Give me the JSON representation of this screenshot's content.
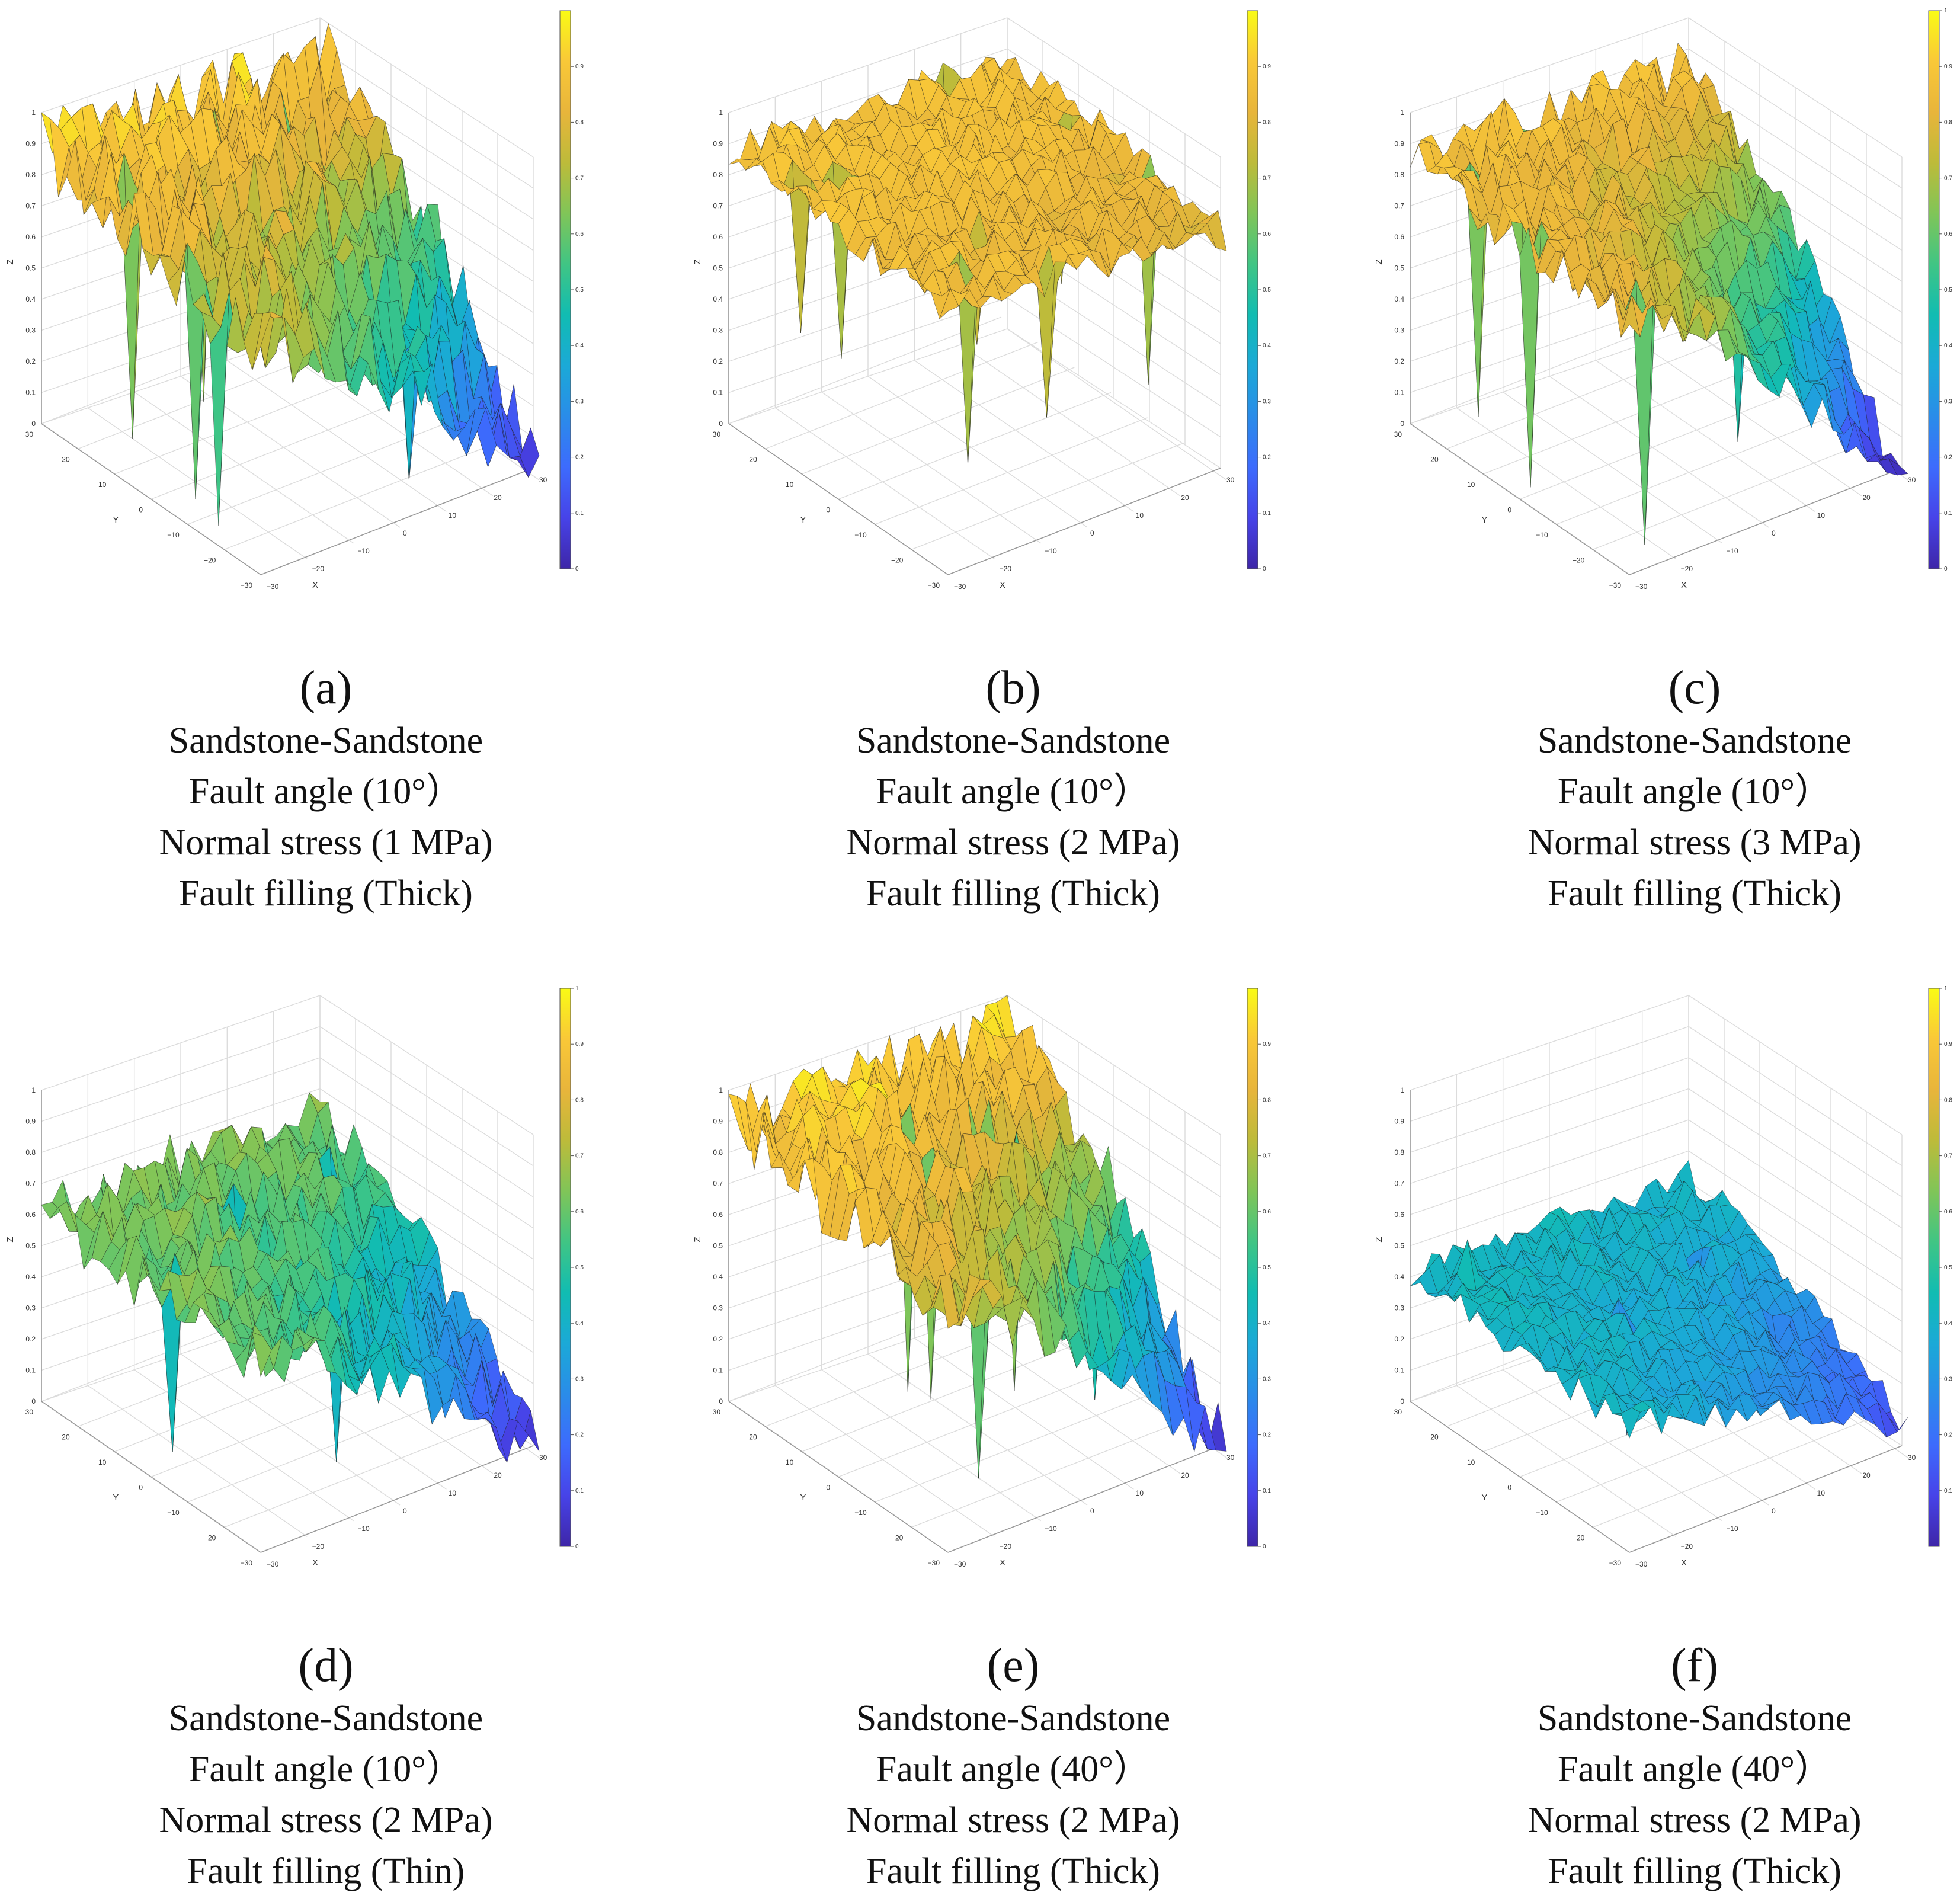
{
  "colors": {
    "colormap": [
      "#3e26a8",
      "#4743e8",
      "#3d6bfd",
      "#2a8ce9",
      "#1ba9d7",
      "#11bcb2",
      "#40c584",
      "#80c558",
      "#bdbb3a",
      "#e8b53b",
      "#f9c838",
      "#f9fb15"
    ],
    "surface_edge": "#1a1a1a",
    "grid": "#dcdcdc",
    "axis": "#9a9a9a"
  },
  "chart_data": [
    {
      "type": "surface3d",
      "panel_letter": "(a)",
      "caption": [
        "Sandstone-Sandstone",
        "Fault angle (10°）",
        "Normal stress (1 MPa)",
        "Fault filling (Thick)"
      ],
      "xlabel": "X",
      "ylabel": "Y",
      "zlabel": "Z",
      "xlim": [
        -30,
        30
      ],
      "ylim": [
        -30,
        30
      ],
      "zlim": [
        0,
        1
      ],
      "x_ticks": [
        "−30",
        "−20",
        "−10",
        "0",
        "10",
        "20",
        "30"
      ],
      "y_ticks": [
        "−30",
        "−20",
        "−10",
        "0",
        "10",
        "20",
        "30"
      ],
      "z_ticks": [
        "0",
        "0.1",
        "0.2",
        "0.3",
        "0.4",
        "0.5",
        "0.6",
        "0.7",
        "0.8",
        "0.9",
        "1"
      ],
      "colorbar": {
        "range": [
          0,
          1
        ],
        "ticks": [
          "0",
          "0.1",
          "0.2",
          "0.3",
          "0.4",
          "0.5",
          "0.6",
          "0.7",
          "0.8",
          "0.9"
        ]
      },
      "surface_profile": {
        "base_level": 0.72,
        "high_edge_level": 0.9,
        "low_corner_level": 0.1,
        "ripple": 0.14,
        "spike_count": 3,
        "dip_count": 6
      }
    },
    {
      "type": "surface3d",
      "panel_letter": "(b)",
      "caption": [
        "Sandstone-Sandstone",
        "Fault angle (10°）",
        "Normal stress (2 MPa)",
        "Fault filling (Thick)"
      ],
      "xlabel": "X",
      "ylabel": "Y",
      "zlabel": "Z",
      "xlim": [
        -30,
        30
      ],
      "ylim": [
        -30,
        30
      ],
      "zlim": [
        0,
        1
      ],
      "x_ticks": [
        "−30",
        "−20",
        "−10",
        "0",
        "10",
        "20",
        "30"
      ],
      "y_ticks": [
        "−30",
        "−20",
        "−10",
        "0",
        "10",
        "20",
        "30"
      ],
      "z_ticks": [
        "0",
        "0.1",
        "0.2",
        "0.3",
        "0.4",
        "0.5",
        "0.6",
        "0.7",
        "0.8",
        "0.9",
        "1"
      ],
      "colorbar": {
        "range": [
          0,
          1
        ],
        "ticks": [
          "0",
          "0.1",
          "0.2",
          "0.3",
          "0.4",
          "0.5",
          "0.6",
          "0.7",
          "0.8",
          "0.9"
        ]
      },
      "surface_profile": {
        "base_level": 0.85,
        "high_edge_level": 0.88,
        "low_corner_level": 0.8,
        "ripple": 0.06,
        "spike_count": 0,
        "dip_count": 9
      }
    },
    {
      "type": "surface3d",
      "panel_letter": "(c)",
      "caption": [
        "Sandstone-Sandstone",
        "Fault angle (10°）",
        "Normal stress (3 MPa)",
        "Fault filling (Thick)"
      ],
      "xlabel": "X",
      "ylabel": "Y",
      "zlabel": "Z",
      "xlim": [
        -30,
        30
      ],
      "ylim": [
        -30,
        30
      ],
      "zlim": [
        0,
        1
      ],
      "x_ticks": [
        "−30",
        "−20",
        "−10",
        "0",
        "10",
        "20",
        "30"
      ],
      "y_ticks": [
        "−30",
        "−20",
        "−10",
        "0",
        "10",
        "20",
        "30"
      ],
      "z_ticks": [
        "0",
        "0.1",
        "0.2",
        "0.3",
        "0.4",
        "0.5",
        "0.6",
        "0.7",
        "0.8",
        "0.9",
        "1"
      ],
      "colorbar": {
        "range": [
          0,
          1
        ],
        "ticks": [
          "0",
          "0.1",
          "0.2",
          "0.3",
          "0.4",
          "0.5",
          "0.6",
          "0.7",
          "0.8",
          "0.9",
          "1"
        ]
      },
      "surface_profile": {
        "base_level": 0.82,
        "high_edge_level": 0.85,
        "low_corner_level": 0.05,
        "ripple": 0.08,
        "spike_count": 2,
        "dip_count": 5
      }
    },
    {
      "type": "surface3d",
      "panel_letter": "(d)",
      "caption": [
        "Sandstone-Sandstone",
        "Fault angle (10°）",
        "Normal stress (2 MPa)",
        "Fault filling (Thin)"
      ],
      "xlabel": "X",
      "ylabel": "Y",
      "zlabel": "Z",
      "xlim": [
        -30,
        30
      ],
      "ylim": [
        -30,
        30
      ],
      "zlim": [
        0,
        1
      ],
      "x_ticks": [
        "−30",
        "−20",
        "−10",
        "0",
        "10",
        "20",
        "30"
      ],
      "y_ticks": [
        "−30",
        "−20",
        "−10",
        "0",
        "10",
        "20",
        "30"
      ],
      "z_ticks": [
        "0",
        "0.1",
        "0.2",
        "0.3",
        "0.4",
        "0.5",
        "0.6",
        "0.7",
        "0.8",
        "0.9",
        "1"
      ],
      "colorbar": {
        "range": [
          0,
          1
        ],
        "ticks": [
          "0",
          "0.1",
          "0.2",
          "0.3",
          "0.4",
          "0.5",
          "0.6",
          "0.7",
          "0.8",
          "0.9",
          "1"
        ]
      },
      "surface_profile": {
        "base_level": 0.6,
        "high_edge_level": 0.62,
        "low_corner_level": 0.1,
        "ripple": 0.1,
        "spike_count": 1,
        "dip_count": 4
      }
    },
    {
      "type": "surface3d",
      "panel_letter": "(e)",
      "caption": [
        "Sandstone-Sandstone",
        "Fault angle (40°）",
        "Normal stress (2 MPa)",
        "Fault filling (Thick)"
      ],
      "xlabel": "X",
      "ylabel": "Y",
      "zlabel": "Z",
      "xlim": [
        -30,
        30
      ],
      "ylim": [
        -30,
        30
      ],
      "zlim": [
        0,
        1
      ],
      "x_ticks": [
        "−30",
        "−20",
        "−10",
        "0",
        "10",
        "20",
        "30"
      ],
      "y_ticks": [
        "−30",
        "−20",
        "−10",
        "0",
        "10",
        "20",
        "30"
      ],
      "z_ticks": [
        "0",
        "0.1",
        "0.2",
        "0.3",
        "0.4",
        "0.5",
        "0.6",
        "0.7",
        "0.8",
        "0.9",
        "1"
      ],
      "colorbar": {
        "range": [
          0,
          1
        ],
        "ticks": [
          "0",
          "0.1",
          "0.2",
          "0.3",
          "0.4",
          "0.5",
          "0.6",
          "0.7",
          "0.8",
          "0.9"
        ]
      },
      "surface_profile": {
        "base_level": 0.78,
        "high_edge_level": 0.92,
        "low_corner_level": 0.12,
        "ripple": 0.12,
        "spike_count": 2,
        "dip_count": 6
      }
    },
    {
      "type": "surface3d",
      "panel_letter": "(f)",
      "caption": [
        "Sandstone-Sandstone",
        "Fault angle (40°）",
        "Normal stress (2 MPa)",
        "Fault filling (Thick)"
      ],
      "xlabel": "X",
      "ylabel": "Y",
      "zlabel": "Z",
      "xlim": [
        -30,
        30
      ],
      "ylim": [
        -30,
        30
      ],
      "zlim": [
        0,
        1
      ],
      "x_ticks": [
        "−30",
        "−20",
        "−10",
        "0",
        "10",
        "20",
        "30"
      ],
      "y_ticks": [
        "−30",
        "−20",
        "−10",
        "0",
        "10",
        "20",
        "30"
      ],
      "z_ticks": [
        "0",
        "0.1",
        "0.2",
        "0.3",
        "0.4",
        "0.5",
        "0.6",
        "0.7",
        "0.8",
        "0.9",
        "1"
      ],
      "colorbar": {
        "range": [
          0,
          1
        ],
        "ticks": [
          "0.1",
          "0.2",
          "0.3",
          "0.4",
          "0.5",
          "0.6",
          "0.7",
          "0.8",
          "0.9",
          "1"
        ]
      },
      "surface_profile": {
        "base_level": 0.4,
        "high_edge_level": 0.42,
        "low_corner_level": 0.15,
        "ripple": 0.05,
        "spike_count": 1,
        "dip_count": 3
      }
    }
  ]
}
